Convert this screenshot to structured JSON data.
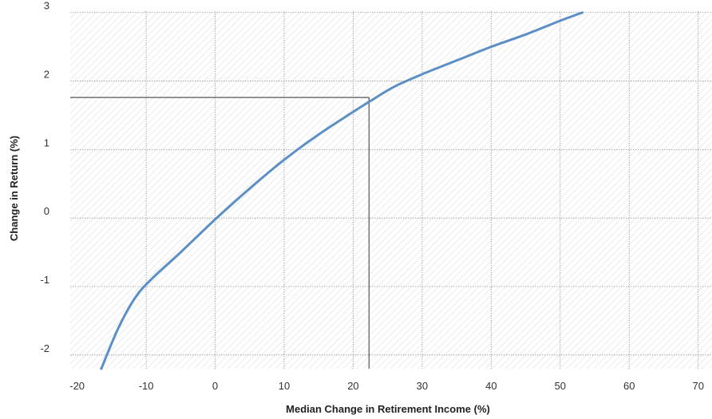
{
  "chart_data": {
    "type": "line",
    "title": "",
    "xlabel": "Median Change in Retirement Income (%)",
    "ylabel": "Change in Return (%)",
    "xlim": [
      -21,
      72
    ],
    "ylim": [
      -2.2,
      3.02
    ],
    "x_ticks": [
      -20,
      -10,
      0,
      10,
      20,
      30,
      40,
      50,
      60,
      70
    ],
    "y_ticks": [
      -2,
      -1,
      0,
      1,
      2,
      3
    ],
    "x_tick_labels": [
      "-20",
      "-10",
      "0",
      "10",
      "20",
      "30",
      "40",
      "50",
      "60",
      "70"
    ],
    "y_tick_labels": [
      "-2",
      "-1",
      "0",
      "1",
      "2",
      "3"
    ],
    "grid": true,
    "series": [
      {
        "color": "#5b8fc5",
        "x": [
          -16.5,
          -14,
          -11.5,
          -9,
          -5,
          0,
          5,
          10,
          15,
          20,
          23,
          26,
          30,
          35,
          40,
          45,
          50,
          53.2
        ],
        "y": [
          -2.2,
          -1.6,
          -1.15,
          -0.87,
          -0.5,
          -0.02,
          0.43,
          0.85,
          1.22,
          1.55,
          1.74,
          1.92,
          2.1,
          2.3,
          2.5,
          2.68,
          2.88,
          3.0
        ]
      }
    ],
    "reference_point": {
      "x": 22.3,
      "y": 1.76,
      "color": "#555555"
    }
  }
}
